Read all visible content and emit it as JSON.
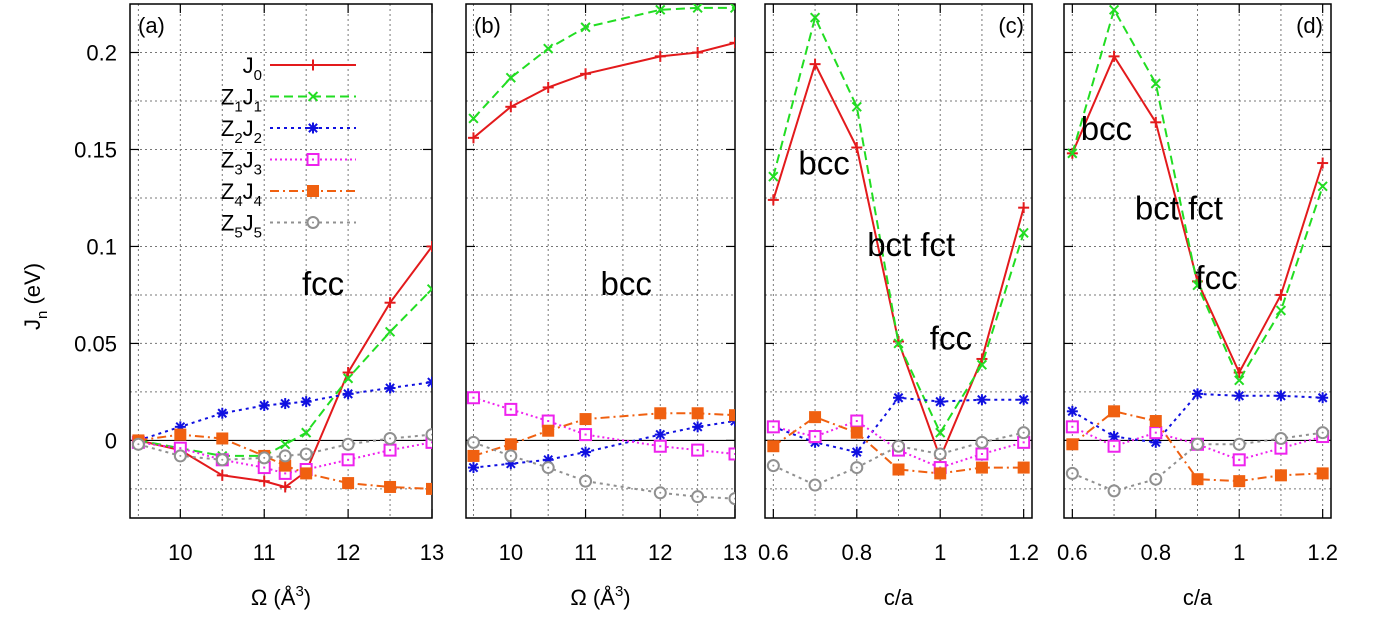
{
  "ylabel": {
    "main": "J",
    "sub": "n",
    "rest": " (eV)"
  },
  "yticks": [
    "0.2",
    "0.15",
    "0.1",
    "0.05",
    "0"
  ],
  "legend": [
    {
      "key": "J0",
      "parts": [
        [
          "J",
          "0"
        ]
      ]
    },
    {
      "key": "Z1J1",
      "parts": [
        [
          "Z",
          "1"
        ],
        [
          "J",
          "1"
        ]
      ]
    },
    {
      "key": "Z2J2",
      "parts": [
        [
          "Z",
          "2"
        ],
        [
          "J",
          "2"
        ]
      ]
    },
    {
      "key": "Z3J3",
      "parts": [
        [
          "Z",
          "3"
        ],
        [
          "J",
          "3"
        ]
      ]
    },
    {
      "key": "Z4J4",
      "parts": [
        [
          "Z",
          "4"
        ],
        [
          "J",
          "4"
        ]
      ]
    },
    {
      "key": "Z5J5",
      "parts": [
        [
          "Z",
          "5"
        ],
        [
          "J",
          "5"
        ]
      ]
    }
  ],
  "styles": {
    "J0": {
      "color": "#e31a1c",
      "dash": "",
      "marker": "plus"
    },
    "Z1J1": {
      "color": "#22dd22",
      "dash": "9,5",
      "marker": "x"
    },
    "Z2J2": {
      "color": "#1010e0",
      "dash": "3,4",
      "marker": "star"
    },
    "Z3J3": {
      "color": "#ee22ee",
      "dash": "2,3",
      "marker": "opensquare"
    },
    "Z4J4": {
      "color": "#f06010",
      "dash": "9,4,2,4",
      "marker": "filledsquare"
    },
    "Z5J5": {
      "color": "#909090",
      "dash": "3,4",
      "marker": "opencircle"
    }
  },
  "chart_data": [
    {
      "type": "line",
      "label": "(a)",
      "title": "",
      "xlabel": {
        "text": "Ω (Å",
        "sup": "3",
        "tail": ")"
      },
      "xlim": [
        9.4,
        13
      ],
      "ylim": [
        -0.04,
        0.225
      ],
      "xticks": [
        10,
        11,
        12,
        13
      ],
      "xtick_labels": [
        "10",
        "11",
        "12",
        "13"
      ],
      "grid": true,
      "annotations": [
        {
          "text": "fcc",
          "x": 11.45,
          "y": 0.075
        }
      ],
      "series": [
        {
          "key": "J0",
          "x": [
            9.5,
            10,
            10.5,
            11,
            11.25,
            11.5,
            12,
            12.5,
            13
          ],
          "y": [
            0,
            -0.005,
            -0.018,
            -0.021,
            -0.024,
            -0.016,
            0.035,
            0.071,
            0.1
          ]
        },
        {
          "key": "Z1J1",
          "x": [
            9.5,
            10,
            10.5,
            11,
            11.25,
            11.5,
            12,
            12.5,
            13
          ],
          "y": [
            0,
            -0.004,
            -0.008,
            -0.008,
            -0.002,
            0.004,
            0.032,
            0.056,
            0.078
          ]
        },
        {
          "key": "Z2J2",
          "x": [
            9.5,
            10,
            10.5,
            11,
            11.25,
            11.5,
            12,
            12.5,
            13
          ],
          "y": [
            0,
            0.007,
            0.014,
            0.018,
            0.019,
            0.02,
            0.024,
            0.027,
            0.03
          ]
        },
        {
          "key": "Z3J3",
          "x": [
            9.5,
            10,
            10.5,
            11,
            11.25,
            11.5,
            12,
            12.5,
            13
          ],
          "y": [
            -0.001,
            -0.004,
            -0.01,
            -0.014,
            -0.017,
            -0.015,
            -0.01,
            -0.005,
            -0.001
          ]
        },
        {
          "key": "Z4J4",
          "x": [
            9.5,
            10,
            10.5,
            11,
            11.25,
            11.5,
            12,
            12.5,
            13
          ],
          "y": [
            0,
            0.003,
            0.001,
            -0.008,
            -0.013,
            -0.017,
            -0.022,
            -0.024,
            -0.025
          ]
        },
        {
          "key": "Z5J5",
          "x": [
            9.5,
            10,
            10.5,
            11,
            11.25,
            11.5,
            12,
            12.5,
            13
          ],
          "y": [
            -0.002,
            -0.008,
            -0.01,
            -0.009,
            -0.008,
            -0.007,
            -0.002,
            0.001,
            0.003
          ]
        }
      ]
    },
    {
      "type": "line",
      "label": "(b)",
      "title": "",
      "xlabel": {
        "text": "Ω (Å",
        "sup": "3",
        "tail": ")"
      },
      "xlim": [
        9.4,
        13
      ],
      "ylim": [
        -0.04,
        0.225
      ],
      "xticks": [
        10,
        11,
        12,
        13
      ],
      "xtick_labels": [
        "10",
        "11",
        "12",
        "13"
      ],
      "grid": true,
      "annotations": [
        {
          "text": "bcc",
          "x": 11.2,
          "y": 0.075
        }
      ],
      "series": [
        {
          "key": "J0",
          "x": [
            9.5,
            10,
            10.5,
            11,
            12,
            12.5,
            13
          ],
          "y": [
            0.156,
            0.172,
            0.182,
            0.189,
            0.198,
            0.2,
            0.205
          ]
        },
        {
          "key": "Z1J1",
          "x": [
            9.5,
            10,
            10.5,
            11,
            12,
            12.5,
            13
          ],
          "y": [
            0.166,
            0.187,
            0.202,
            0.213,
            0.222,
            0.223,
            0.223
          ]
        },
        {
          "key": "Z2J2",
          "x": [
            9.5,
            10,
            10.5,
            11,
            12,
            12.5,
            13
          ],
          "y": [
            -0.014,
            -0.012,
            -0.01,
            -0.006,
            0.003,
            0.007,
            0.01
          ]
        },
        {
          "key": "Z3J3",
          "x": [
            9.5,
            10,
            10.5,
            11,
            12,
            12.5,
            13
          ],
          "y": [
            0.022,
            0.016,
            0.01,
            0.003,
            -0.003,
            -0.005,
            -0.007
          ]
        },
        {
          "key": "Z4J4",
          "x": [
            9.5,
            10,
            10.5,
            11,
            12,
            12.5,
            13
          ],
          "y": [
            -0.008,
            -0.002,
            0.005,
            0.011,
            0.014,
            0.014,
            0.013
          ]
        },
        {
          "key": "Z5J5",
          "x": [
            9.5,
            10,
            10.5,
            11,
            12,
            12.5,
            13
          ],
          "y": [
            -0.001,
            -0.008,
            -0.014,
            -0.021,
            -0.027,
            -0.029,
            -0.03
          ]
        }
      ]
    },
    {
      "type": "line",
      "label": "(c)",
      "title": "",
      "xlabel": {
        "text": "c/a",
        "sup": "",
        "tail": ""
      },
      "xlim": [
        0.58,
        1.22
      ],
      "ylim": [
        -0.04,
        0.225
      ],
      "xticks": [
        0.6,
        0.8,
        1.0,
        1.2
      ],
      "xtick_labels": [
        "0.6",
        "0.8",
        "1",
        "1.2"
      ],
      "grid": true,
      "annotations": [
        {
          "text": "bcc",
          "x": 0.66,
          "y": 0.137
        },
        {
          "text": "bct fct",
          "x": 0.825,
          "y": 0.095
        },
        {
          "text": "fcc",
          "x": 0.975,
          "y": 0.047
        }
      ],
      "series": [
        {
          "key": "J0",
          "x": [
            0.6,
            0.7,
            0.8,
            0.9,
            1.0,
            1.1,
            1.2
          ],
          "y": [
            0.124,
            0.194,
            0.151,
            0.051,
            -0.009,
            0.042,
            0.12
          ]
        },
        {
          "key": "Z1J1",
          "x": [
            0.6,
            0.7,
            0.8,
            0.9,
            1.0,
            1.1,
            1.2
          ],
          "y": [
            0.136,
            0.218,
            0.172,
            0.05,
            0.004,
            0.039,
            0.107
          ]
        },
        {
          "key": "Z2J2",
          "x": [
            0.6,
            0.7,
            0.8,
            0.9,
            1.0,
            1.1,
            1.2
          ],
          "y": [
            0.007,
            -0.001,
            -0.006,
            0.022,
            0.02,
            0.021,
            0.021
          ]
        },
        {
          "key": "Z3J3",
          "x": [
            0.6,
            0.7,
            0.8,
            0.9,
            1.0,
            1.1,
            1.2
          ],
          "y": [
            0.007,
            0.002,
            0.01,
            -0.005,
            -0.014,
            -0.007,
            -0.001
          ]
        },
        {
          "key": "Z4J4",
          "x": [
            0.6,
            0.7,
            0.8,
            0.9,
            1.0,
            1.1,
            1.2
          ],
          "y": [
            -0.003,
            0.012,
            0.004,
            -0.015,
            -0.017,
            -0.014,
            -0.014
          ]
        },
        {
          "key": "Z5J5",
          "x": [
            0.6,
            0.7,
            0.8,
            0.9,
            1.0,
            1.1,
            1.2
          ],
          "y": [
            -0.013,
            -0.023,
            -0.014,
            -0.003,
            -0.007,
            -0.001,
            0.004
          ]
        }
      ]
    },
    {
      "type": "line",
      "label": "(d)",
      "title": "",
      "xlabel": {
        "text": "c/a",
        "sup": "",
        "tail": ""
      },
      "xlim": [
        0.58,
        1.22
      ],
      "ylim": [
        -0.04,
        0.225
      ],
      "xticks": [
        0.6,
        0.8,
        1.0,
        1.2
      ],
      "xtick_labels": [
        "0.6",
        "0.8",
        "1",
        "1.2"
      ],
      "grid": true,
      "annotations": [
        {
          "text": "bcc",
          "x": 0.62,
          "y": 0.155
        },
        {
          "text": "bct fct",
          "x": 0.75,
          "y": 0.114
        },
        {
          "text": "fcc",
          "x": 0.895,
          "y": 0.078
        }
      ],
      "series": [
        {
          "key": "J0",
          "x": [
            0.6,
            0.7,
            0.8,
            0.9,
            1.0,
            1.1,
            1.2
          ],
          "y": [
            0.148,
            0.198,
            0.164,
            0.082,
            0.035,
            0.075,
            0.143
          ]
        },
        {
          "key": "Z1J1",
          "x": [
            0.6,
            0.7,
            0.8,
            0.9,
            1.0,
            1.1,
            1.2
          ],
          "y": [
            0.148,
            0.222,
            0.184,
            0.08,
            0.031,
            0.067,
            0.131
          ]
        },
        {
          "key": "Z2J2",
          "x": [
            0.6,
            0.7,
            0.8,
            0.9,
            1.0,
            1.1,
            1.2
          ],
          "y": [
            0.015,
            0.002,
            -0.001,
            0.024,
            0.023,
            0.023,
            0.022
          ]
        },
        {
          "key": "Z3J3",
          "x": [
            0.6,
            0.7,
            0.8,
            0.9,
            1.0,
            1.1,
            1.2
          ],
          "y": [
            0.007,
            -0.003,
            0.004,
            -0.002,
            -0.01,
            -0.004,
            0.002
          ]
        },
        {
          "key": "Z4J4",
          "x": [
            0.6,
            0.7,
            0.8,
            0.9,
            1.0,
            1.1,
            1.2
          ],
          "y": [
            -0.002,
            0.015,
            0.01,
            -0.02,
            -0.021,
            -0.018,
            -0.017
          ]
        },
        {
          "key": "Z5J5",
          "x": [
            0.6,
            0.7,
            0.8,
            0.9,
            1.0,
            1.1,
            1.2
          ],
          "y": [
            -0.017,
            -0.026,
            -0.02,
            -0.002,
            -0.002,
            0.001,
            0.004
          ]
        }
      ]
    }
  ]
}
